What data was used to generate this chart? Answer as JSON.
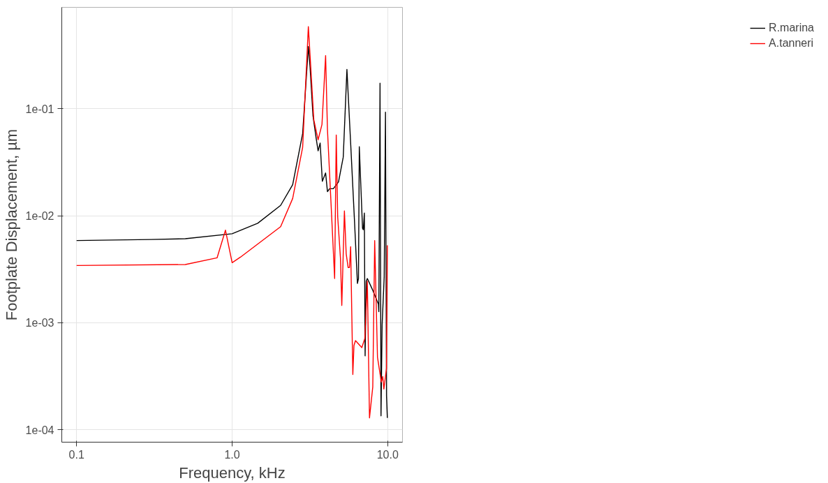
{
  "chart_data": {
    "type": "line",
    "xlabel": "Frequency, kHz",
    "ylabel": "Footplate Displacement, µm",
    "log": "xy",
    "grid": true,
    "legend": "right",
    "line_style": "solid",
    "marker": "none",
    "xlim": [
      0.0803,
      12.45
    ],
    "ylim": [
      7.65e-05,
      0.887
    ],
    "xticks": [
      0.1,
      {
        "value": 1,
        "label": "1.0"
      },
      {
        "value": 10,
        "label": "10.0"
      }
    ],
    "yticks": [
      {
        "value": 0.0001,
        "label": "1e-04"
      },
      {
        "value": 0.001,
        "label": "1e-03"
      },
      {
        "value": 0.01,
        "label": "1e-02"
      },
      {
        "value": 0.1,
        "label": "1e-01"
      }
    ],
    "series": [
      {
        "name": "R.marina",
        "color": "#000000",
        "x": [
          0.1,
          0.3,
          0.5,
          1.0,
          1.46,
          2.05,
          2.45,
          2.84,
          3.09,
          3.17,
          3.31,
          3.47,
          3.57,
          3.68,
          3.8,
          3.99,
          4.1,
          4.23,
          4.47,
          4.83,
          5.18,
          5.47,
          5.78,
          6.12,
          6.39,
          6.49,
          6.57,
          6.89,
          6.97,
          7.08,
          7.16,
          7.28,
          7.4,
          8.02,
          8.72,
          8.77,
          8.93,
          9.06,
          9.21,
          9.5,
          9.68,
          9.83,
          9.95
        ],
        "values": [
          0.00586,
          0.006,
          0.0061,
          0.00679,
          0.0085,
          0.0125,
          0.0195,
          0.0586,
          0.381,
          0.244,
          0.086,
          0.0528,
          0.0404,
          0.0478,
          0.021,
          0.0251,
          0.0168,
          0.0179,
          0.0179,
          0.0207,
          0.0353,
          0.233,
          0.0478,
          0.00887,
          0.00233,
          0.00259,
          0.0441,
          0.00766,
          0.0074,
          0.0106,
          0.00049,
          0.00244,
          0.00259,
          0.00201,
          0.00149,
          0.00127,
          0.173,
          0.000135,
          0.000957,
          0.0027,
          0.0929,
          0.000207,
          0.000129
        ]
      },
      {
        "name": "A.tanneri",
        "color": "#ff0000",
        "x": [
          0.1,
          0.5,
          0.8,
          0.906,
          1.0,
          1.13,
          2.05,
          2.45,
          2.84,
          3.09,
          3.17,
          3.35,
          3.57,
          3.78,
          3.99,
          4.1,
          4.4,
          4.56,
          4.67,
          4.77,
          4.97,
          5.07,
          5.27,
          5.41,
          5.57,
          5.68,
          5.78,
          5.97,
          6.07,
          6.21,
          6.82,
          7.13,
          7.4,
          7.64,
          8.02,
          8.25,
          8.6,
          9.1,
          9.3,
          9.45,
          9.83,
          9.95
        ],
        "values": [
          0.00343,
          0.0035,
          0.00404,
          0.00733,
          0.00364,
          0.0041,
          0.0079,
          0.0145,
          0.0435,
          0.586,
          0.314,
          0.0789,
          0.0513,
          0.0712,
          0.314,
          0.064,
          0.00766,
          0.00259,
          0.0569,
          0.00986,
          0.00404,
          0.00145,
          0.0111,
          0.00441,
          0.00328,
          0.00328,
          0.00513,
          0.000328,
          0.000612,
          0.00068,
          0.000586,
          0.000711,
          0.00244,
          0.000129,
          0.000251,
          0.00586,
          0.000475,
          0.000279,
          0.000314,
          0.00024,
          0.000375,
          0.00528
        ]
      }
    ]
  }
}
